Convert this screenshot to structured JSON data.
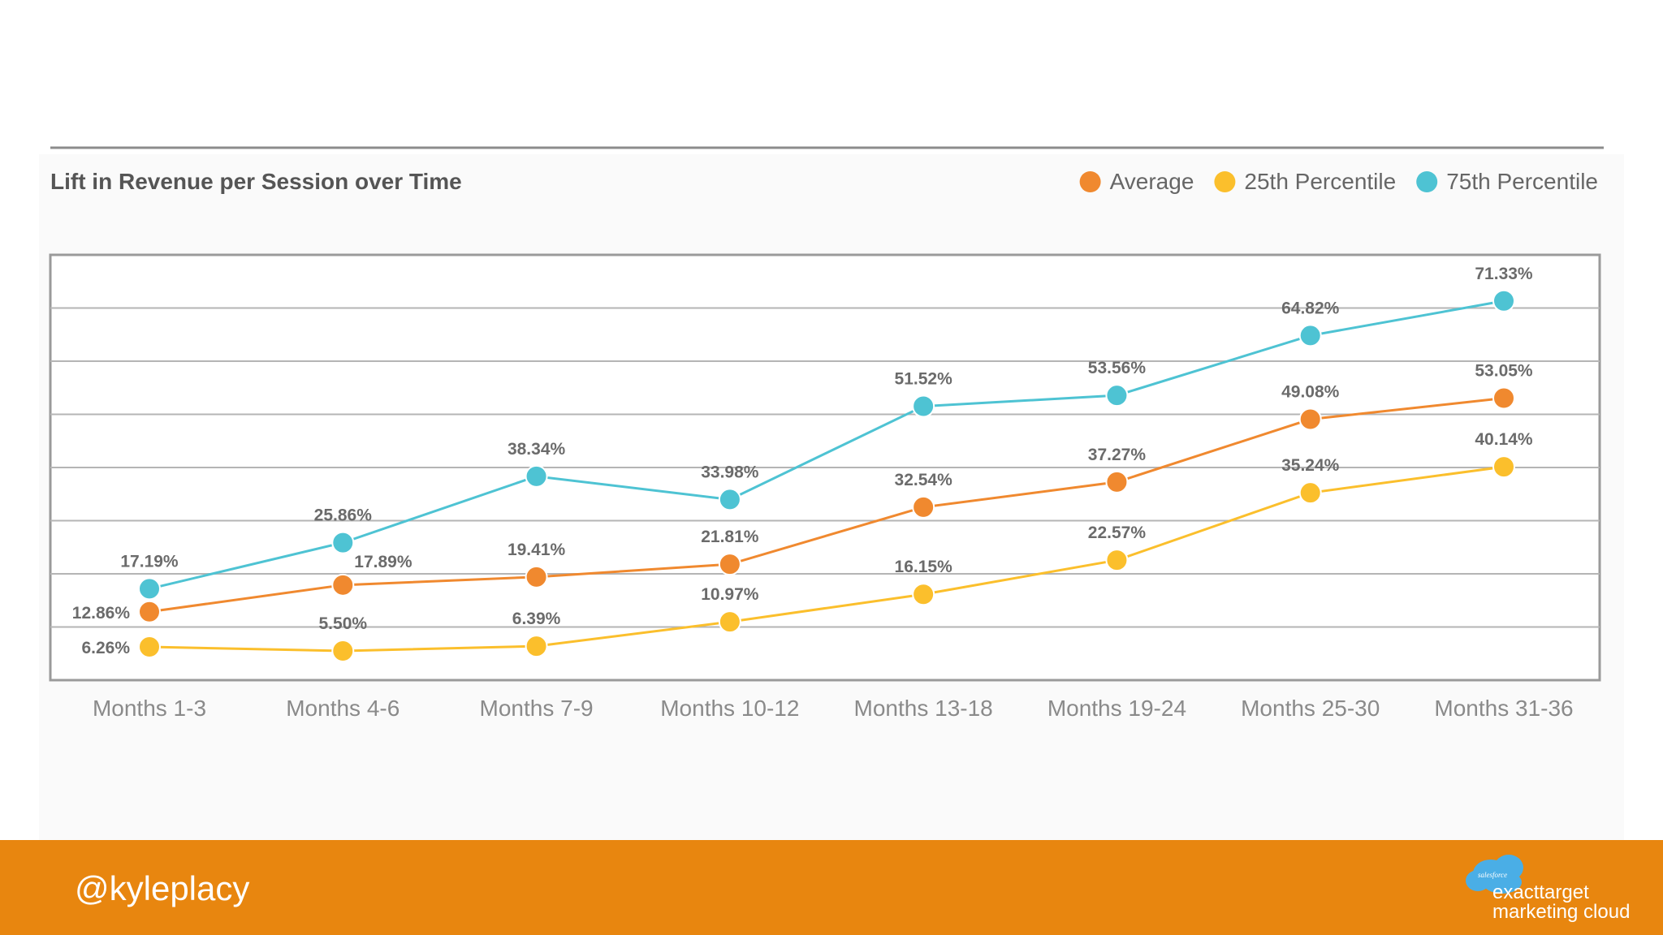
{
  "chart_data": {
    "type": "line",
    "title": "Lift in Revenue per Session over Time",
    "categories": [
      "Months 1-3",
      "Months 4-6",
      "Months 7-9",
      "Months 10-12",
      "Months 13-18",
      "Months 19-24",
      "Months 25-30",
      "Months 31-36"
    ],
    "ylim": [
      0,
      80
    ],
    "grid": true,
    "legend_position": "top-right",
    "series": [
      {
        "name": "Average",
        "color": "#f0892f",
        "values": [
          12.86,
          17.89,
          19.41,
          21.81,
          32.54,
          37.27,
          49.08,
          53.05
        ],
        "labels": [
          "12.86%",
          "17.89%",
          "19.41%",
          "21.81%",
          "32.54%",
          "37.27%",
          "49.08%",
          "53.05%"
        ]
      },
      {
        "name": "25th Percentile",
        "color": "#fbbf2c",
        "values": [
          6.26,
          5.5,
          6.39,
          10.97,
          16.15,
          22.57,
          35.24,
          40.14
        ],
        "labels": [
          "6.26%",
          "5.50%",
          "6.39%",
          "10.97%",
          "16.15%",
          "22.57%",
          "35.24%",
          "40.14%"
        ]
      },
      {
        "name": "75th Percentile",
        "color": "#4ec3d3",
        "values": [
          17.19,
          25.86,
          38.34,
          33.98,
          51.52,
          53.56,
          64.82,
          71.33
        ],
        "labels": [
          "17.19%",
          "25.86%",
          "38.34%",
          "33.98%",
          "51.52%",
          "53.56%",
          "64.82%",
          "71.33%"
        ]
      }
    ]
  },
  "footer": {
    "handle": "@kyleplacy",
    "logo_small": "salesforce",
    "logo_line1": "exacttarget",
    "logo_line2": "marketing cloud",
    "color": "#e8860f"
  }
}
